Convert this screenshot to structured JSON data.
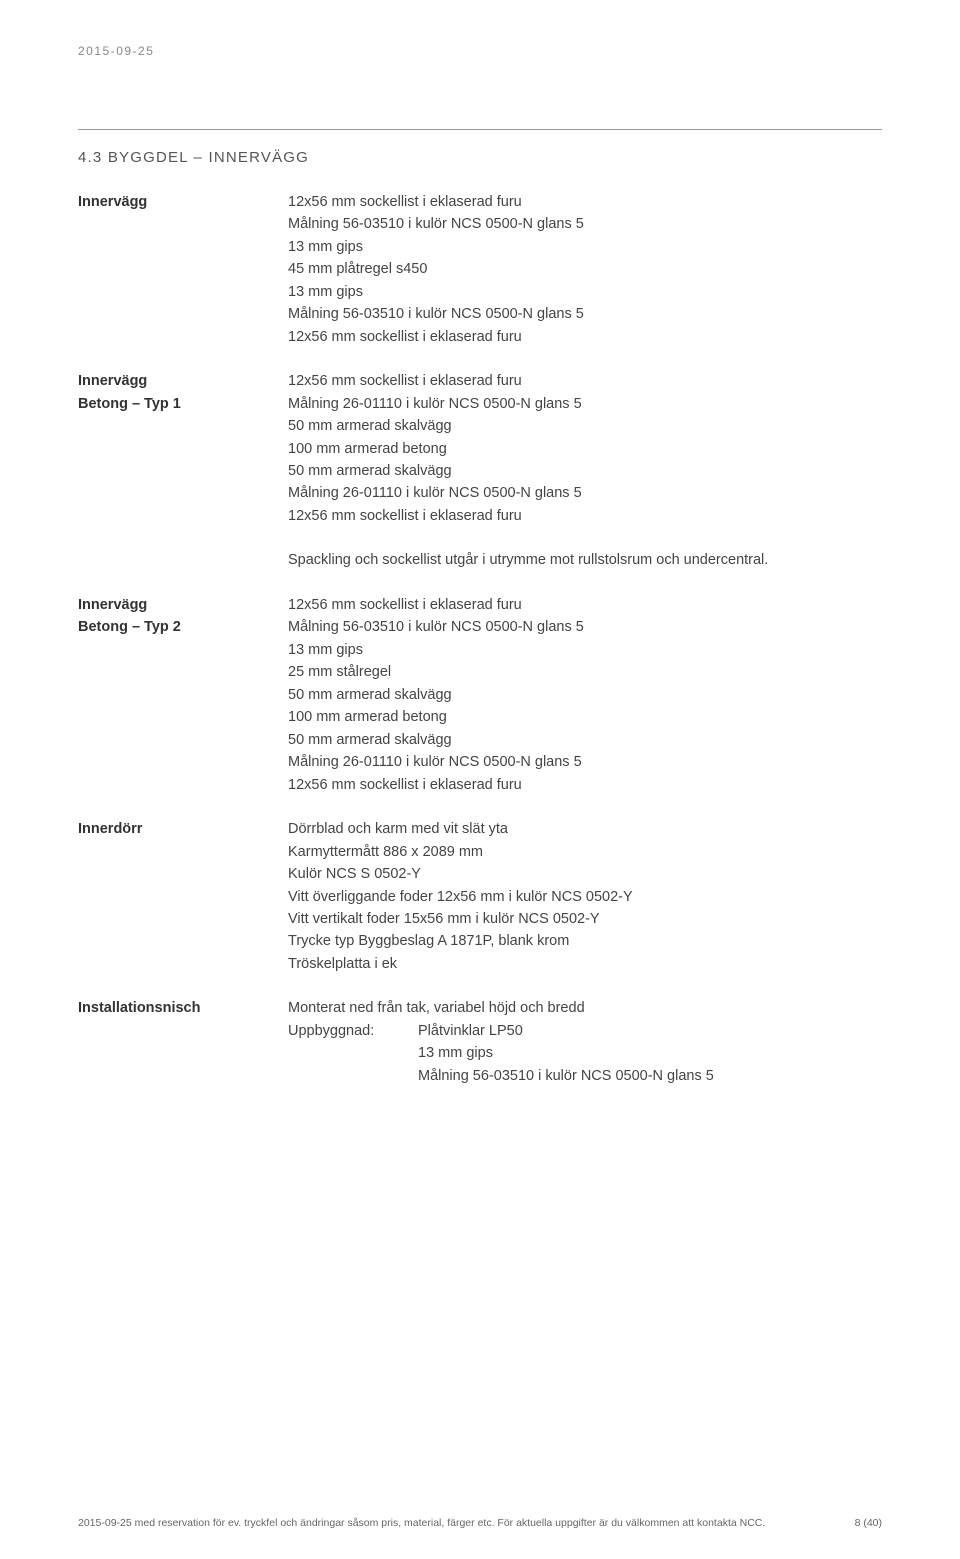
{
  "header_date": "2015-09-25",
  "section_title": "4.3 BYGGDEL – INNERVÄGG",
  "blocks": [
    {
      "label": "Innervägg",
      "lines": [
        "12x56 mm sockellist i eklaserad furu",
        "Målning 56-03510 i kulör NCS 0500-N glans 5",
        "13 mm gips",
        "45 mm plåtregel s450",
        "13 mm gips",
        "Målning 56-03510 i kulör NCS 0500-N glans 5",
        "12x56 mm sockellist i eklaserad furu"
      ]
    },
    {
      "label": "Innervägg\nBetong – Typ 1",
      "lines": [
        "12x56 mm sockellist i eklaserad furu",
        "Målning 26-01110 i kulör NCS 0500-N glans 5",
        "50 mm armerad skalvägg",
        "100 mm armerad betong",
        "50 mm armerad skalvägg",
        "Målning 26-01110 i kulör NCS 0500-N glans 5",
        "12x56 mm sockellist i eklaserad furu"
      ]
    }
  ],
  "note_line": "Spackling och sockellist utgår i utrymme mot rullstolsrum och undercentral.",
  "blocks2": [
    {
      "label": "Innervägg\nBetong – Typ 2",
      "lines": [
        "12x56 mm sockellist i eklaserad furu",
        "Målning 56-03510 i kulör NCS 0500-N glans 5",
        "13 mm gips",
        "25 mm stålregel",
        "50 mm armerad skalvägg",
        "100 mm armerad betong",
        "50 mm armerad skalvägg",
        "Målning 26-01110 i kulör NCS 0500-N glans 5",
        "12x56 mm sockellist i eklaserad furu"
      ]
    },
    {
      "label": "Innerdörr",
      "lines": [
        "Dörrblad och karm med vit slät yta",
        "Karmyttermått 886 x 2089 mm",
        "Kulör NCS S 0502-Y",
        "Vitt överliggande foder 12x56 mm i kulör NCS 0502-Y",
        "Vitt vertikalt foder 15x56 mm i kulör NCS 0502-Y",
        "Trycke typ Byggbeslag A 1871P, blank krom",
        "Tröskelplatta i ek"
      ]
    }
  ],
  "install": {
    "label": "Installationsnisch",
    "line1": "Monterat ned från tak, variabel höjd och bredd",
    "sublabel": "Uppbyggnad:",
    "sublines": [
      "Plåtvinklar LP50",
      "13 mm gips",
      "Målning 56-03510 i kulör NCS 0500-N glans 5"
    ]
  },
  "footer_left": "2015-09-25 med reservation för ev. tryckfel och ändringar såsom pris, material, färger etc. För aktuella uppgifter är du välkommen att kontakta NCC.",
  "footer_right": "8 (40)"
}
